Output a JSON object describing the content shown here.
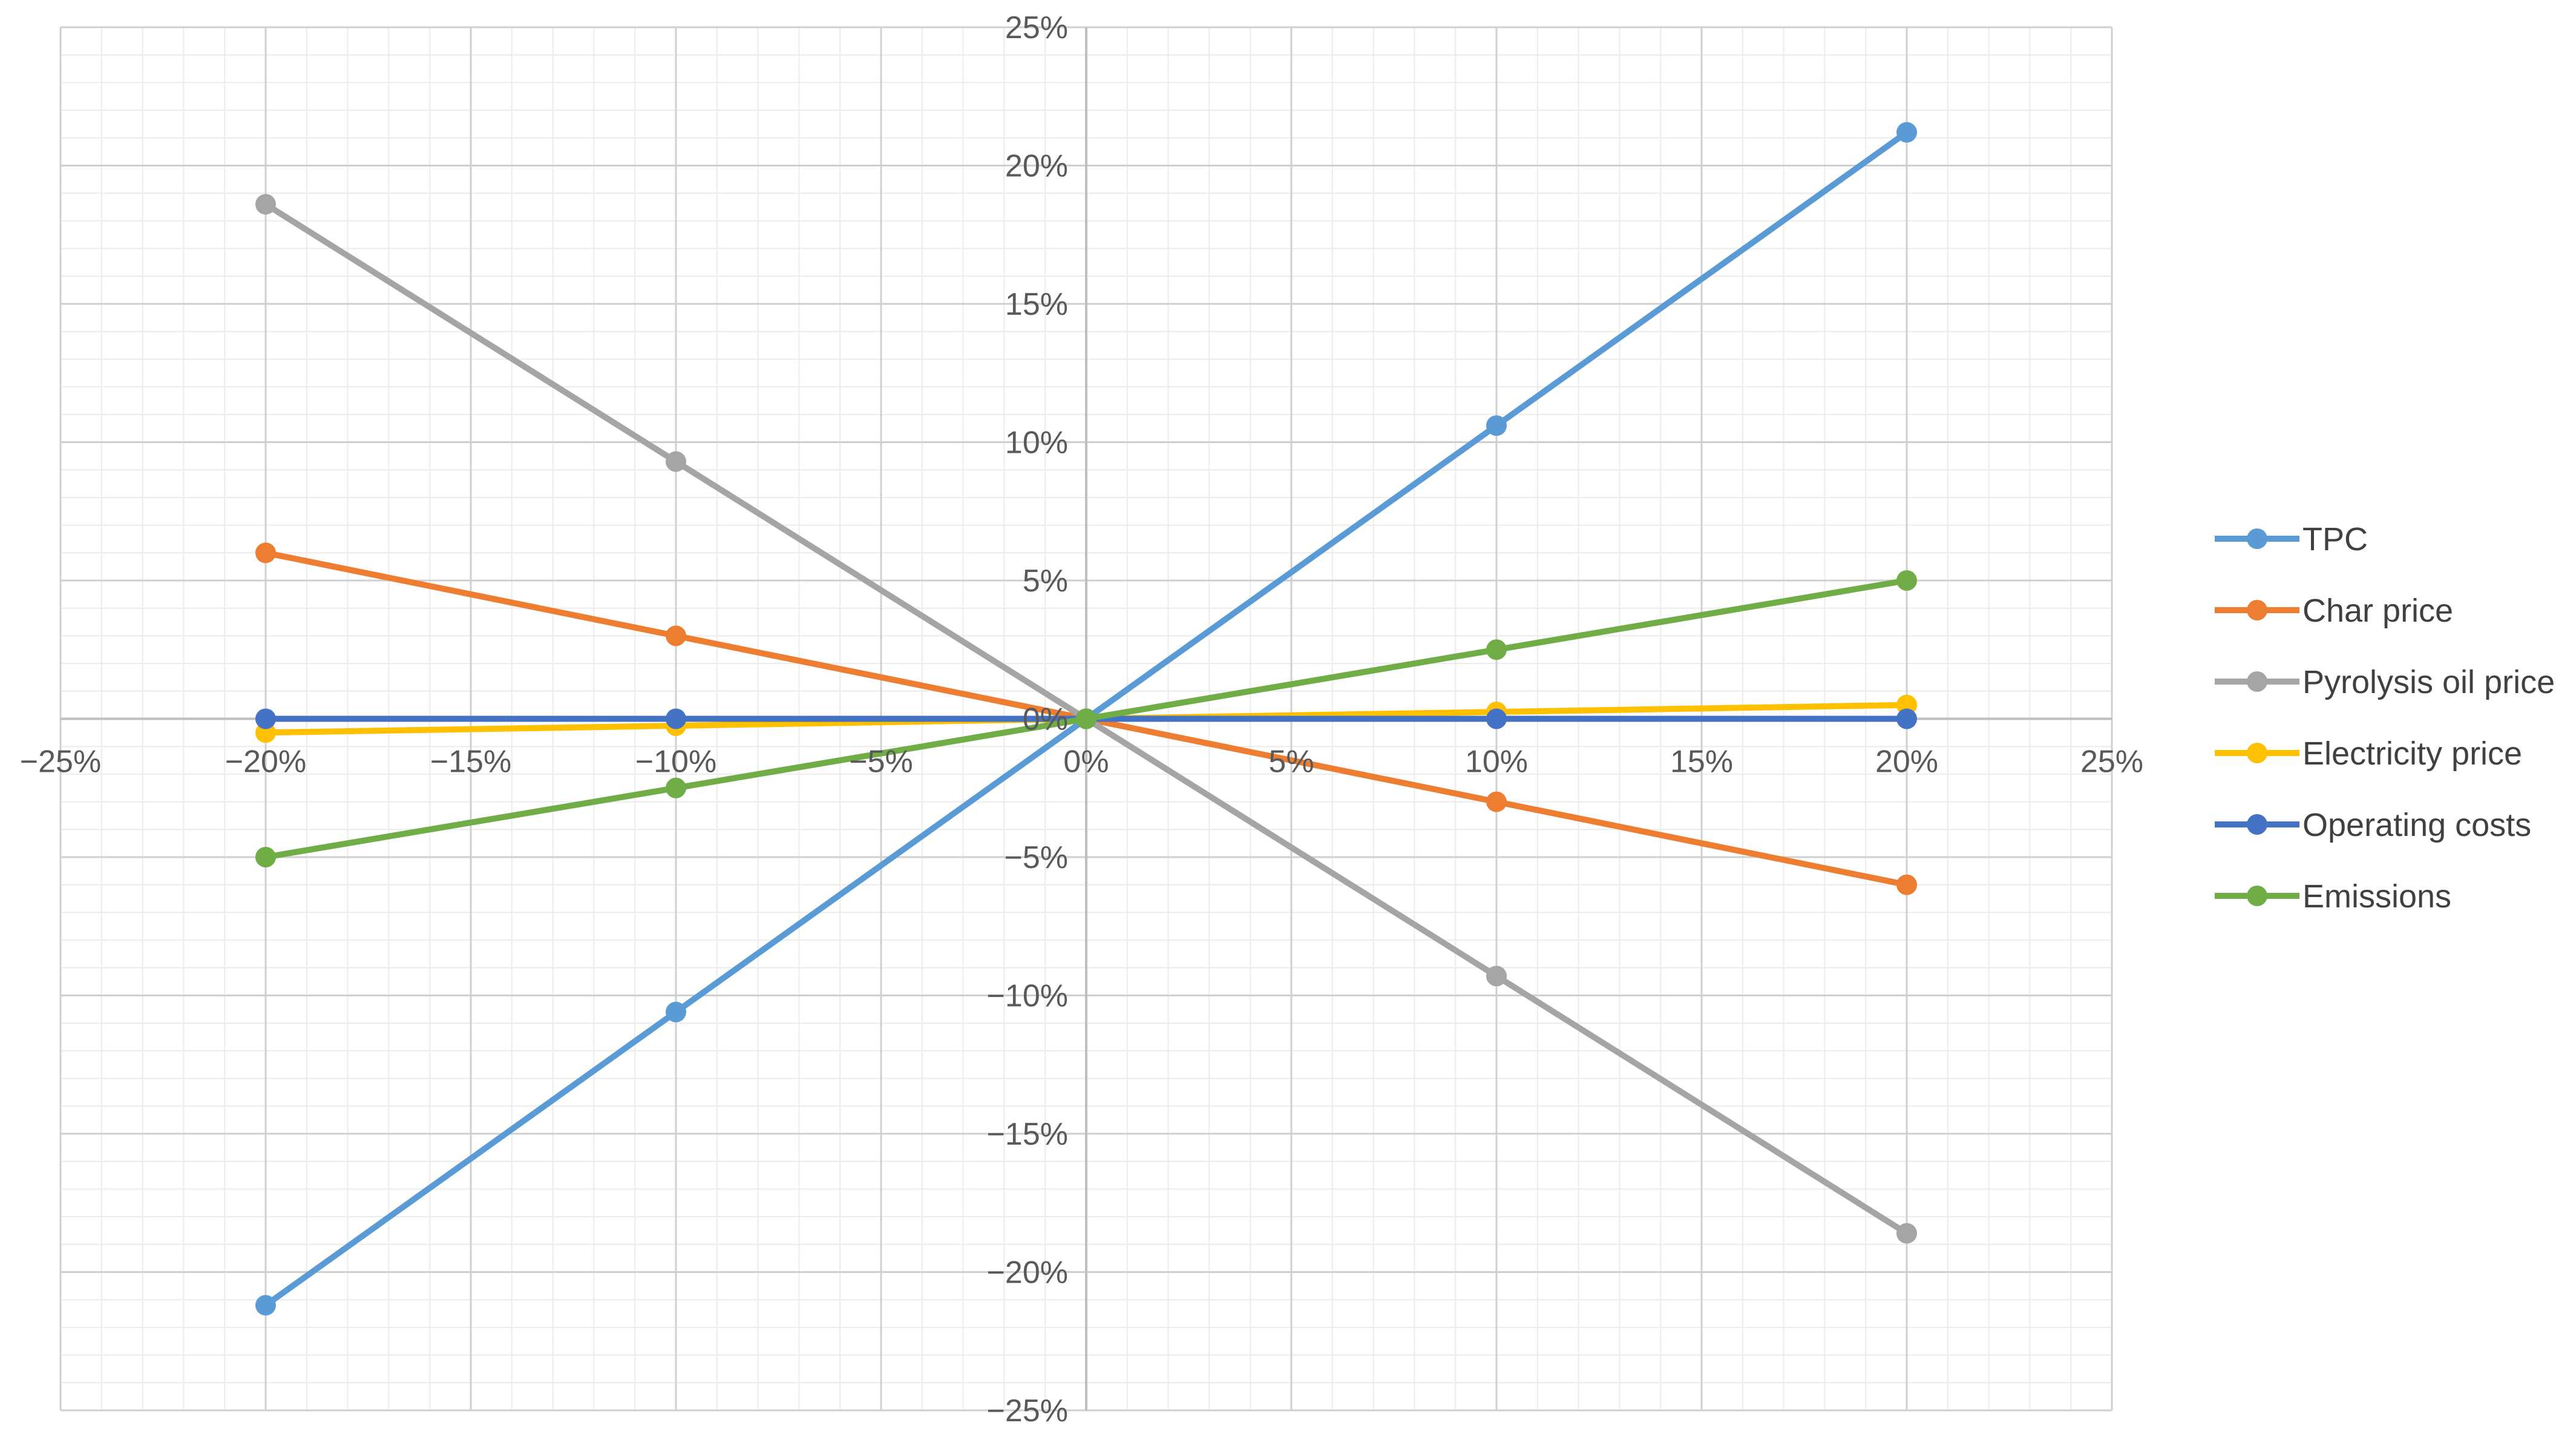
{
  "chart_data": {
    "type": "scatter",
    "title": "",
    "xlabel": "",
    "ylabel": "",
    "xlim": [
      -0.25,
      0.25
    ],
    "ylim": [
      -0.25,
      0.25
    ],
    "x_ticks": [
      {
        "value": -0.25,
        "label": "−25%"
      },
      {
        "value": -0.2,
        "label": "−20%"
      },
      {
        "value": -0.15,
        "label": "−15%"
      },
      {
        "value": -0.1,
        "label": "−10%"
      },
      {
        "value": -0.05,
        "label": "−5%"
      },
      {
        "value": 0.0,
        "label": "0%"
      },
      {
        "value": 0.05,
        "label": "5%"
      },
      {
        "value": 0.1,
        "label": "10%"
      },
      {
        "value": 0.15,
        "label": "15%"
      },
      {
        "value": 0.2,
        "label": "20%"
      },
      {
        "value": 0.25,
        "label": "25%"
      }
    ],
    "y_ticks": [
      {
        "value": 0.25,
        "label": "25%"
      },
      {
        "value": 0.2,
        "label": "20%"
      },
      {
        "value": 0.15,
        "label": "15%"
      },
      {
        "value": 0.1,
        "label": "10%"
      },
      {
        "value": 0.05,
        "label": "5%"
      },
      {
        "value": 0.0,
        "label": "0%"
      },
      {
        "value": -0.05,
        "label": "−5%"
      },
      {
        "value": -0.1,
        "label": "−10%"
      },
      {
        "value": -0.15,
        "label": "−15%"
      },
      {
        "value": -0.2,
        "label": "−20%"
      },
      {
        "value": -0.25,
        "label": "−25%"
      }
    ],
    "grid": true,
    "minor_grid": true,
    "legend_position": "right",
    "x": [
      -0.2,
      -0.1,
      0.0,
      0.1,
      0.2
    ],
    "series": [
      {
        "name": "TPC",
        "color": "#5B9BD5",
        "values": [
          -0.212,
          -0.106,
          0.0,
          0.106,
          0.212
        ]
      },
      {
        "name": "Char price",
        "color": "#ED7D31",
        "values": [
          0.06,
          0.03,
          0.0,
          -0.03,
          -0.06
        ]
      },
      {
        "name": "Pyrolysis oil price",
        "color": "#A5A5A5",
        "values": [
          0.186,
          0.093,
          0.0,
          -0.093,
          -0.186
        ]
      },
      {
        "name": "Electricity price",
        "color": "#FFC000",
        "values": [
          -0.005,
          -0.0025,
          0.0,
          0.0025,
          0.005
        ]
      },
      {
        "name": "Operating costs",
        "color": "#4472C4",
        "values": [
          0.0,
          0.0,
          0.0,
          0.0,
          0.0
        ]
      },
      {
        "name": "Emissions",
        "color": "#70AD47",
        "values": [
          -0.05,
          -0.025,
          0.0,
          0.025,
          0.05
        ]
      }
    ]
  }
}
